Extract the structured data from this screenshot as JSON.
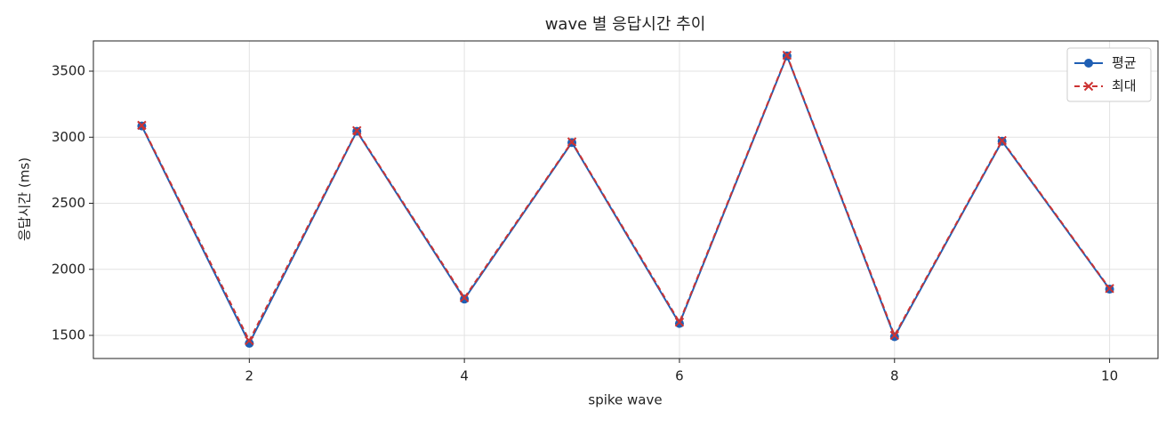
{
  "chart_data": {
    "type": "line",
    "title": "wave 별 응답시간 추이",
    "x_label": "spike wave",
    "y_label": "응답시간 (ms)",
    "x": [
      1,
      2,
      3,
      4,
      5,
      6,
      7,
      8,
      9,
      10
    ],
    "series": [
      {
        "name": "평균",
        "color": "#1f5fb4",
        "marker": "o",
        "dash": false,
        "values": [
          3085,
          1440,
          3045,
          1775,
          2960,
          1590,
          3615,
          1490,
          2970,
          1850
        ]
      },
      {
        "name": "최대",
        "color": "#cc3333",
        "marker": "x",
        "dash": true,
        "values": [
          3090,
          1460,
          3050,
          1785,
          2965,
          1600,
          3620,
          1500,
          2975,
          1855
        ]
      }
    ],
    "xlim": [
      0.55,
      10.45
    ],
    "ylim": [
      1325,
      3729
    ],
    "xticks": [
      2,
      4,
      6,
      8,
      10
    ],
    "yticks": [
      1500,
      2000,
      2500,
      3000,
      3500
    ],
    "grid": true,
    "legend": "upper right"
  }
}
